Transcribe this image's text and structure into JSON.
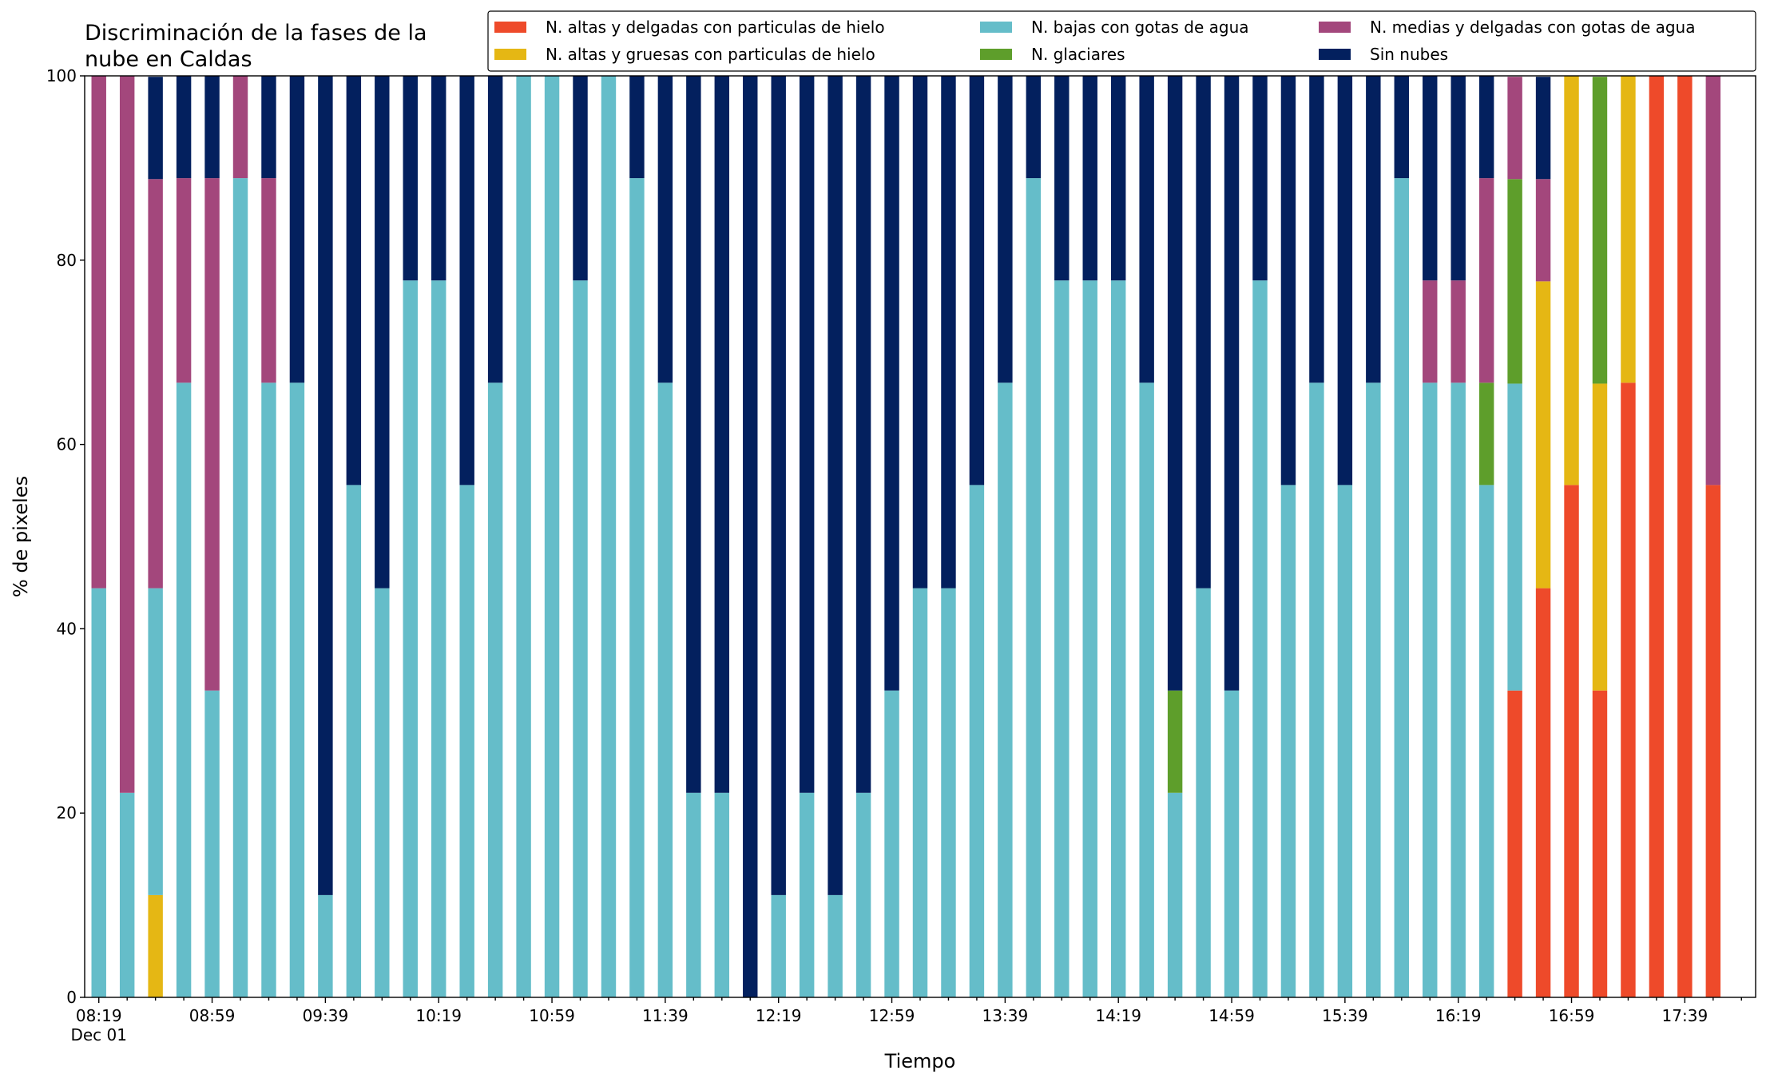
{
  "chart_data": {
    "type": "stacked_bar",
    "title_lines": [
      "Discriminación de la fases de la",
      "nube en Caldas"
    ],
    "x_label": "Tiempo",
    "y_label": "% de pixeles",
    "x_date_label": "Dec 01",
    "categories": [
      "08:19",
      null,
      null,
      null,
      "08:59",
      null,
      null,
      null,
      "09:39",
      null,
      null,
      null,
      "10:19",
      null,
      null,
      null,
      "10:59",
      null,
      null,
      null,
      "11:39",
      null,
      null,
      null,
      "12:19",
      null,
      null,
      null,
      "12:59",
      null,
      null,
      null,
      "13:39",
      null,
      null,
      null,
      "14:19",
      null,
      null,
      null,
      "14:59",
      null,
      null,
      null,
      "15:39",
      null,
      null,
      null,
      "16:19",
      null,
      null,
      null,
      "16:59",
      null,
      null,
      null,
      "17:39",
      null
    ],
    "ylim": [
      0,
      100
    ],
    "yticks": [
      0,
      20,
      40,
      60,
      80,
      100
    ],
    "legend": "top-right",
    "series": [
      {
        "name": "N. altas y delgadas con particulas de hielo",
        "color": "#ee4a2a",
        "values": [
          0,
          0,
          0,
          0,
          0,
          0,
          0,
          0,
          0,
          0,
          0,
          0,
          0,
          0,
          0,
          0,
          0,
          0,
          0,
          0,
          0,
          0,
          0,
          0,
          0,
          0,
          0,
          0,
          0,
          0,
          0,
          0,
          0,
          0,
          0,
          0,
          0,
          0,
          0,
          0,
          0,
          0,
          0,
          0,
          0,
          0,
          0,
          0,
          0,
          0,
          33.3,
          44.4,
          55.6,
          33.3,
          66.7,
          100,
          100,
          55.6
        ]
      },
      {
        "name": "N. altas y gruesas con particulas de hielo",
        "color": "#e5b714",
        "values": [
          0,
          0,
          11.1,
          0,
          0,
          0,
          0,
          0,
          0,
          0,
          0,
          0,
          0,
          0,
          0,
          0,
          0,
          0,
          0,
          0,
          0,
          0,
          0,
          0,
          0,
          0,
          0,
          0,
          0,
          0,
          0,
          0,
          0,
          0,
          0,
          0,
          0,
          0,
          0,
          0,
          0,
          0,
          0,
          0,
          0,
          0,
          0,
          0,
          0,
          0,
          0,
          33.3,
          44.4,
          33.3,
          33.3,
          0,
          0,
          0
        ]
      },
      {
        "name": "N. bajas con gotas de agua",
        "color": "#65bdc9",
        "values": [
          44.4,
          22.2,
          33.3,
          66.7,
          33.3,
          88.9,
          66.7,
          66.7,
          11.1,
          55.6,
          44.4,
          77.8,
          77.8,
          55.6,
          66.7,
          100,
          100,
          77.8,
          100,
          88.9,
          66.7,
          22.2,
          22.2,
          0,
          11.1,
          22.2,
          11.1,
          22.2,
          33.3,
          44.4,
          44.4,
          55.6,
          66.7,
          88.9,
          77.8,
          77.8,
          77.8,
          66.7,
          22.2,
          44.4,
          33.3,
          77.8,
          55.6,
          66.7,
          55.6,
          66.7,
          88.9,
          66.7,
          66.7,
          55.6,
          33.3,
          0,
          0,
          0,
          0,
          0,
          0,
          0
        ]
      },
      {
        "name": "N. glaciares",
        "color": "#5e9e2b",
        "values": [
          0,
          0,
          0,
          0,
          0,
          0,
          0,
          0,
          0,
          0,
          0,
          0,
          0,
          0,
          0,
          0,
          0,
          0,
          0,
          0,
          0,
          0,
          0,
          0,
          0,
          0,
          0,
          0,
          0,
          0,
          0,
          0,
          0,
          0,
          0,
          0,
          0,
          0,
          11.1,
          0,
          0,
          0,
          0,
          0,
          0,
          0,
          0,
          0,
          0,
          11.1,
          22.2,
          0,
          0,
          33.3,
          0,
          0,
          0,
          0
        ]
      },
      {
        "name": "N. medias y delgadas con gotas de agua",
        "color": "#a3477c",
        "values": [
          55.6,
          77.8,
          44.4,
          22.2,
          55.6,
          11.1,
          22.2,
          0,
          0,
          0,
          0,
          0,
          0,
          0,
          0,
          0,
          0,
          0,
          0,
          0,
          0,
          0,
          0,
          0,
          0,
          0,
          0,
          0,
          0,
          0,
          0,
          0,
          0,
          0,
          0,
          0,
          0,
          0,
          0,
          0,
          0,
          0,
          0,
          0,
          0,
          0,
          0,
          11.1,
          11.1,
          22.2,
          11.1,
          11.1,
          0,
          0,
          0,
          0,
          0,
          44.4
        ]
      },
      {
        "name": "Sin nubes",
        "color": "#03205e",
        "values": [
          0,
          0,
          11.1,
          11.1,
          11.1,
          0,
          11.1,
          33.3,
          88.9,
          44.4,
          55.6,
          22.2,
          22.2,
          44.4,
          33.3,
          0,
          0,
          22.2,
          0,
          11.1,
          33.3,
          77.8,
          77.8,
          100,
          88.9,
          77.8,
          88.9,
          77.8,
          66.7,
          55.6,
          55.6,
          44.4,
          33.3,
          11.1,
          22.2,
          22.2,
          22.2,
          33.3,
          66.7,
          55.6,
          66.7,
          22.2,
          44.4,
          33.3,
          44.4,
          33.3,
          11.1,
          22.2,
          22.2,
          11.1,
          0,
          11.1,
          0,
          0,
          0,
          0,
          0,
          0
        ]
      }
    ]
  }
}
